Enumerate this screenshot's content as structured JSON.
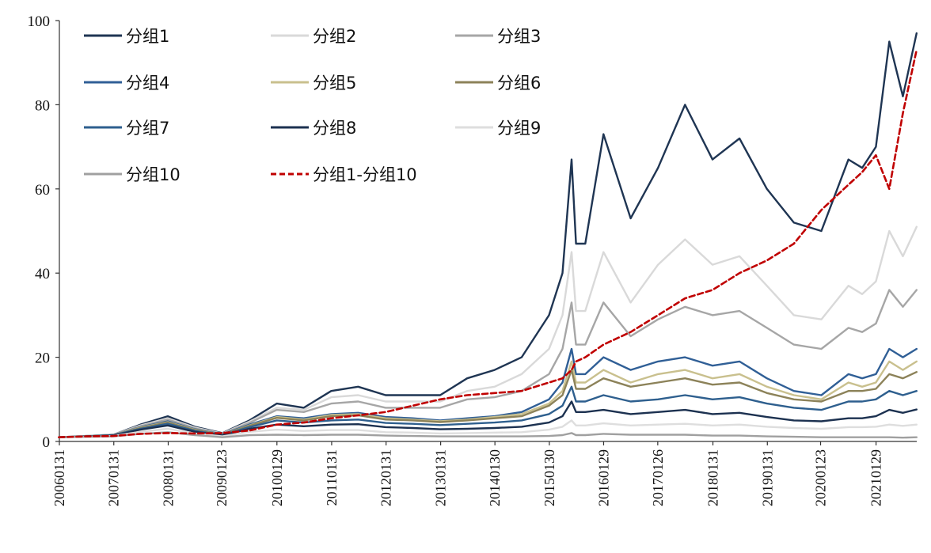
{
  "chart_data": {
    "type": "line",
    "title": "",
    "xlabel": "",
    "ylabel": "",
    "ylim": [
      0,
      100
    ],
    "yticks": [
      0,
      20,
      40,
      60,
      80,
      100
    ],
    "grid": false,
    "legend_position": "top-left",
    "x_tick_labels": [
      "20060131",
      "20070131",
      "20080131",
      "20090123",
      "20100129",
      "20110131",
      "20120131",
      "20130131",
      "20140130",
      "20150130",
      "20160129",
      "20170126",
      "20180131",
      "20190131",
      "20200123",
      "20210129"
    ],
    "x": [
      "2006-01",
      "2006-07",
      "2007-01",
      "2007-07",
      "2008-01",
      "2008-07",
      "2009-01",
      "2009-07",
      "2010-01",
      "2010-07",
      "2011-01",
      "2011-07",
      "2012-01",
      "2012-07",
      "2013-01",
      "2013-07",
      "2014-01",
      "2014-07",
      "2015-01",
      "2015-04",
      "2015-06",
      "2015-07",
      "2015-09",
      "2016-01",
      "2016-07",
      "2017-01",
      "2017-07",
      "2018-01",
      "2018-07",
      "2019-01",
      "2019-07",
      "2020-01",
      "2020-07",
      "2020-10",
      "2021-01",
      "2021-04",
      "2021-07",
      "2021-10"
    ],
    "series": [
      {
        "name": "分组1",
        "color": "#1f3553",
        "dash": "solid",
        "values": [
          1,
          1.3,
          1.6,
          4,
          6,
          3.5,
          2,
          5,
          9,
          8,
          12,
          13,
          11,
          11,
          11,
          15,
          17,
          20,
          30,
          40,
          67,
          47,
          47,
          73,
          53,
          65,
          80,
          67,
          72,
          60,
          52,
          50,
          67,
          65,
          70,
          95,
          82,
          97
        ]
      },
      {
        "name": "分组2",
        "color": "#d9d9d9",
        "dash": "solid",
        "values": [
          1,
          1.3,
          1.6,
          3.8,
          5.5,
          3.3,
          1.9,
          4.7,
          8,
          7.5,
          10.5,
          11,
          9.5,
          9.5,
          9.5,
          12,
          13,
          16,
          22,
          30,
          45,
          31,
          31,
          45,
          33,
          42,
          48,
          42,
          44,
          37,
          30,
          29,
          37,
          35,
          38,
          50,
          44,
          51
        ]
      },
      {
        "name": "分组3",
        "color": "#a6a6a6",
        "dash": "solid",
        "values": [
          1,
          1.3,
          1.6,
          3.6,
          5.2,
          3.1,
          1.8,
          4.4,
          7.5,
          7,
          9,
          9.5,
          8,
          8,
          8,
          10,
          10.5,
          12,
          16,
          22,
          33,
          23,
          23,
          33,
          25,
          29,
          32,
          30,
          31,
          27,
          23,
          22,
          27,
          26,
          28,
          36,
          32,
          36
        ]
      },
      {
        "name": "分组4",
        "color": "#305f96",
        "dash": "solid",
        "values": [
          1,
          1.2,
          1.5,
          3.4,
          4.8,
          2.9,
          1.7,
          4,
          6,
          5.5,
          6.5,
          6.8,
          5.8,
          5.5,
          5,
          5.5,
          6,
          7,
          10,
          14,
          22,
          16,
          16,
          20,
          17,
          19,
          20,
          18,
          19,
          15,
          12,
          11,
          16,
          15,
          16,
          22,
          20,
          22
        ]
      },
      {
        "name": "分组5",
        "color": "#c9c08e",
        "dash": "solid",
        "values": [
          1,
          1.2,
          1.5,
          3.3,
          4.6,
          2.8,
          1.6,
          3.8,
          5.8,
          5.2,
          6.3,
          6.5,
          5.5,
          5.2,
          4.8,
          5.2,
          5.8,
          6.5,
          9,
          12,
          19,
          14,
          14,
          17,
          14,
          16,
          17,
          15,
          16,
          13,
          11,
          10,
          14,
          13,
          14,
          19,
          17,
          19
        ]
      },
      {
        "name": "分组6",
        "color": "#8c8259",
        "dash": "solid",
        "values": [
          1,
          1.2,
          1.5,
          3.2,
          4.5,
          2.7,
          1.6,
          3.7,
          5.6,
          5,
          6,
          6.2,
          5.2,
          5,
          4.6,
          5,
          5.5,
          6,
          8.5,
          11,
          17,
          12.5,
          12.5,
          15,
          13,
          14,
          15,
          13.5,
          14,
          11.5,
          10,
          9.5,
          12,
          12,
          12.5,
          16,
          15,
          16.5
        ]
      },
      {
        "name": "分组7",
        "color": "#2e5f8e",
        "dash": "solid",
        "values": [
          1,
          1.2,
          1.5,
          3,
          4.2,
          2.5,
          1.5,
          3.4,
          5,
          4.5,
          5,
          5.2,
          4.4,
          4.2,
          3.9,
          4.2,
          4.5,
          5,
          6.5,
          8.5,
          13,
          9.5,
          9.5,
          11,
          9.5,
          10,
          11,
          10,
          10.5,
          9,
          8,
          7.5,
          9.5,
          9.5,
          10,
          12,
          11,
          12
        ]
      },
      {
        "name": "分组8",
        "color": "#1c3150",
        "dash": "solid",
        "values": [
          1,
          1.2,
          1.4,
          2.8,
          3.8,
          2.3,
          1.4,
          3,
          4,
          3.6,
          4,
          4.1,
          3.4,
          3.2,
          2.9,
          3,
          3.2,
          3.5,
          4.5,
          6,
          9.5,
          7,
          7,
          7.5,
          6.5,
          7,
          7.5,
          6.5,
          6.8,
          5.8,
          5,
          4.8,
          5.5,
          5.5,
          6,
          7.5,
          6.8,
          7.6
        ]
      },
      {
        "name": "分组9",
        "color": "#dedede",
        "dash": "solid",
        "values": [
          1,
          1.1,
          1.3,
          2.3,
          3,
          1.9,
          1.2,
          2.3,
          2.8,
          2.5,
          2.7,
          2.7,
          2.2,
          2.1,
          1.9,
          2,
          2.1,
          2.2,
          2.8,
          3.5,
          5,
          3.8,
          3.8,
          4.3,
          3.8,
          4,
          4.2,
          3.8,
          4,
          3.5,
          3.2,
          3,
          3.4,
          3.4,
          3.5,
          4,
          3.7,
          4
        ]
      },
      {
        "name": "分组10",
        "color": "#a0a0a0",
        "dash": "solid",
        "values": [
          1,
          1.1,
          1.2,
          1.8,
          2.2,
          1.5,
          1,
          1.5,
          1.6,
          1.5,
          1.6,
          1.6,
          1.4,
          1.3,
          1.2,
          1.2,
          1.2,
          1.2,
          1.3,
          1.5,
          2,
          1.5,
          1.5,
          1.8,
          1.6,
          1.6,
          1.6,
          1.4,
          1.4,
          1.2,
          1.1,
          1,
          1,
          1,
          1,
          1,
          0.9,
          1
        ]
      },
      {
        "name": "分组1-分组10",
        "color": "#c00000",
        "dash": "dashed",
        "values": [
          1,
          1.2,
          1.3,
          1.8,
          2,
          1.9,
          2,
          2.6,
          4,
          4.5,
          5.5,
          6.2,
          7,
          8.5,
          10,
          11,
          11.5,
          12,
          14,
          15,
          17,
          19,
          20,
          23,
          26,
          30,
          34,
          36,
          40,
          43,
          47,
          55,
          61,
          64,
          68,
          60,
          78,
          93
        ]
      }
    ]
  }
}
